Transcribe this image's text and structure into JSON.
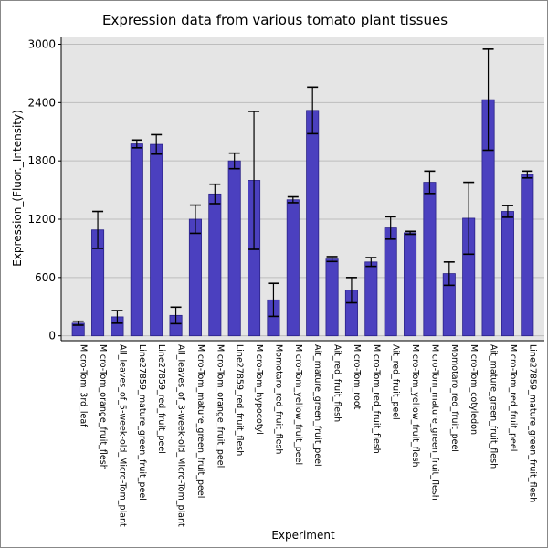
{
  "chart_data": {
    "type": "bar",
    "title": "Expression data from various tomato plant tissues",
    "xlabel": "Experiment",
    "ylabel": "Expression_(Fluor._Intensity)",
    "ylim": [
      -50,
      3080
    ],
    "yticks": [
      0,
      600,
      1200,
      1800,
      2400,
      3000
    ],
    "grid": true,
    "colors": {
      "bar": "#4b40bf",
      "bar_edge": "#2a2288",
      "error": "#000000",
      "plot_bg": "#e5e5e5",
      "grid": "#bdbdbd"
    },
    "categories": [
      "Micro-Tom_3rd_leaf",
      "Micro-Tom_orange_fruit_flesh",
      "All_leaves_of_5-week-old_Micro-Tom_plant",
      "Line27859_mature_green_fruit_peel",
      "Line27859_red_fruit_peel",
      "All_leaves_of_3-week-old_Micro-Tom_plant",
      "Micro-Tom_mature_green_fruit_peel",
      "Micro-Tom_orange_fruit_peel",
      "Line27859_red_fruit_flesh",
      "Micro-Tom_hypocotyl",
      "Momotaro_red_fruit_flesh",
      "Micro-Tom_yellow_fruit_peel",
      "Ait_mature_green_fruit_peel",
      "Ait_red_fruit_flesh",
      "Micro-Tom_root",
      "Micro-Tom_red_fruit_flesh",
      "Ait_red_fruit_peel",
      "Micro-Tom_yellow_fruit_flesh",
      "Micro-Tom_mature_green_fruit_flesh",
      "Momotaro_red_fruit_peel",
      "Micro-Tom_cotyledon",
      "Ait_mature_green_fruit_flesh",
      "Micro-Tom_red_fruit_peel",
      "Line27859_mature_green_fruit_flesh"
    ],
    "values": [
      130,
      1090,
      195,
      1975,
      1970,
      210,
      1200,
      1460,
      1800,
      1600,
      370,
      1400,
      2320,
      790,
      470,
      760,
      1110,
      1060,
      1580,
      640,
      1210,
      2430,
      1280,
      1660
    ],
    "errors": [
      20,
      190,
      65,
      40,
      100,
      85,
      145,
      100,
      80,
      710,
      170,
      30,
      240,
      25,
      130,
      45,
      115,
      15,
      115,
      120,
      370,
      520,
      60,
      35
    ]
  }
}
